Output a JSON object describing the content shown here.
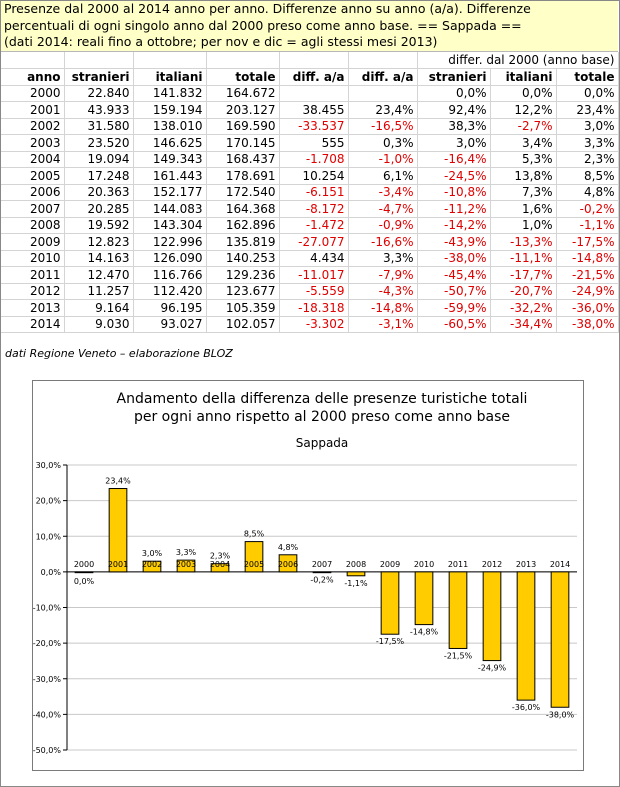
{
  "intro": {
    "line1": "Presenze dal 2000 al 2014 anno per anno. Differenze anno su anno (a/a). Differenze",
    "line2": "percentuali di ogni singolo anno dal 2000 preso come anno base. == Sappada ==",
    "line3": "(dati 2014: reali fino a ottobre; per nov e dic = agli stessi mesi 2013)"
  },
  "table": {
    "group_header": "differ. dal 2000 (anno base)",
    "columns": [
      "anno",
      "stranieri",
      "italiani",
      "totale",
      "diff. a/a",
      "diff. a/a",
      "stranieri",
      "italiani",
      "totale"
    ],
    "rows": [
      [
        "2000",
        "22.840",
        "141.832",
        "164.672",
        "",
        "",
        "0,0%",
        "0,0%",
        "0,0%"
      ],
      [
        "2001",
        "43.933",
        "159.194",
        "203.127",
        "38.455",
        "23,4%",
        "92,4%",
        "12,2%",
        "23,4%"
      ],
      [
        "2002",
        "31.580",
        "138.010",
        "169.590",
        "-33.537",
        "-16,5%",
        "38,3%",
        "-2,7%",
        "3,0%"
      ],
      [
        "2003",
        "23.520",
        "146.625",
        "170.145",
        "555",
        "0,3%",
        "3,0%",
        "3,4%",
        "3,3%"
      ],
      [
        "2004",
        "19.094",
        "149.343",
        "168.437",
        "-1.708",
        "-1,0%",
        "-16,4%",
        "5,3%",
        "2,3%"
      ],
      [
        "2005",
        "17.248",
        "161.443",
        "178.691",
        "10.254",
        "6,1%",
        "-24,5%",
        "13,8%",
        "8,5%"
      ],
      [
        "2006",
        "20.363",
        "152.177",
        "172.540",
        "-6.151",
        "-3,4%",
        "-10,8%",
        "7,3%",
        "4,8%"
      ],
      [
        "2007",
        "20.285",
        "144.083",
        "164.368",
        "-8.172",
        "-4,7%",
        "-11,2%",
        "1,6%",
        "-0,2%"
      ],
      [
        "2008",
        "19.592",
        "143.304",
        "162.896",
        "-1.472",
        "-0,9%",
        "-14,2%",
        "1,0%",
        "-1,1%"
      ],
      [
        "2009",
        "12.823",
        "122.996",
        "135.819",
        "-27.077",
        "-16,6%",
        "-43,9%",
        "-13,3%",
        "-17,5%"
      ],
      [
        "2010",
        "14.163",
        "126.090",
        "140.253",
        "4.434",
        "3,3%",
        "-38,0%",
        "-11,1%",
        "-14,8%"
      ],
      [
        "2011",
        "12.470",
        "116.766",
        "129.236",
        "-11.017",
        "-7,9%",
        "-45,4%",
        "-17,7%",
        "-21,5%"
      ],
      [
        "2012",
        "11.257",
        "112.420",
        "123.677",
        "-5.559",
        "-4,3%",
        "-50,7%",
        "-20,7%",
        "-24,9%"
      ],
      [
        "2013",
        "9.164",
        "96.195",
        "105.359",
        "-18.318",
        "-14,8%",
        "-59,9%",
        "-32,2%",
        "-36,0%"
      ],
      [
        "2014",
        "9.030",
        "93.027",
        "102.057",
        "-3.302",
        "-3,1%",
        "-60,5%",
        "-34,4%",
        "-38,0%"
      ]
    ]
  },
  "source_note": "dati Regione Veneto – elaborazione BLOZ",
  "colors": {
    "header_bg": "#ffffc8",
    "negative": "#e00000",
    "bar_fill": "#ffcc00",
    "bar_stroke": "#000000"
  },
  "chart_data": {
    "type": "bar",
    "title": "Andamento della differenza delle presenze turistiche totali",
    "title2": "per ogni anno rispetto al 2000 preso come anno base",
    "subtitle": "Sappada",
    "categories": [
      "2000",
      "2001",
      "2002",
      "2003",
      "2004",
      "2005",
      "2006",
      "2007",
      "2008",
      "2009",
      "2010",
      "2011",
      "2012",
      "2013",
      "2014"
    ],
    "values": [
      0.0,
      23.4,
      3.0,
      3.3,
      2.3,
      8.5,
      4.8,
      -0.2,
      -1.1,
      -17.5,
      -14.8,
      -21.5,
      -24.9,
      -36.0,
      -38.0
    ],
    "data_labels": [
      "0,0%",
      "23,4%",
      "3,0%",
      "3,3%",
      "2,3%",
      "8,5%",
      "4,8%",
      "-0,2%",
      "-1,1%",
      "-17,5%",
      "-14,8%",
      "-21,5%",
      "-24,9%",
      "-36,0%",
      "-38,0%"
    ],
    "ylim": [
      -50,
      30
    ],
    "yticks": [
      30,
      20,
      10,
      0,
      -10,
      -20,
      -30,
      -40,
      -50
    ],
    "ytick_labels": [
      "30,0%",
      "20,0%",
      "10,0%",
      "0,0%",
      "-10,0%",
      "-20,0%",
      "-30,0%",
      "-40,0%",
      "-50,0%"
    ],
    "grid": true,
    "xlabel": "",
    "ylabel": ""
  }
}
